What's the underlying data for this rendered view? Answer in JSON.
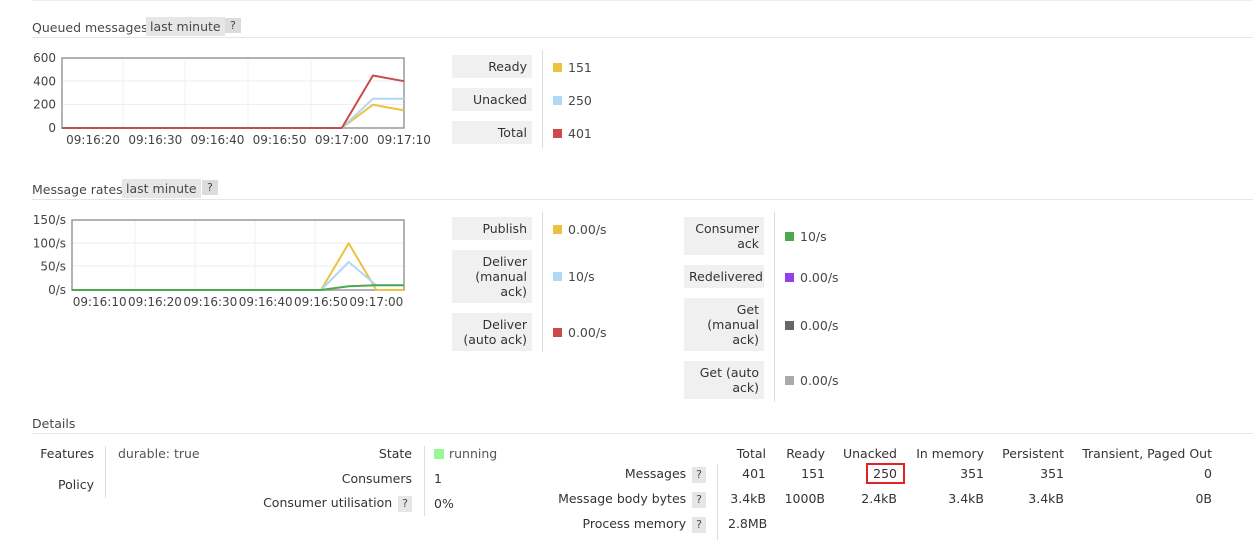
{
  "queued": {
    "title": "Queued messages",
    "range": "last minute",
    "help": "?",
    "yticks": [
      "600",
      "400",
      "200",
      "0"
    ],
    "xticks": [
      "09:16:20",
      "09:16:30",
      "09:16:40",
      "09:16:50",
      "09:17:00",
      "09:17:10"
    ],
    "legend": [
      {
        "label": "Ready",
        "value": "151",
        "color": "#edc240"
      },
      {
        "label": "Unacked",
        "value": "250",
        "color": "#afd8f8"
      },
      {
        "label": "Total",
        "value": "401",
        "color": "#cb4b4b"
      }
    ]
  },
  "rates": {
    "title": "Message rates",
    "range": "last minute",
    "help": "?",
    "yticks": [
      "150/s",
      "100/s",
      "50/s",
      "0/s"
    ],
    "xticks": [
      "09:16:10",
      "09:16:20",
      "09:16:30",
      "09:16:40",
      "09:16:50",
      "09:17:00"
    ],
    "legend_left": [
      {
        "label": "Publish",
        "value": "0.00/s",
        "color": "#edc240"
      },
      {
        "label": "Deliver (manual ack)",
        "value": "10/s",
        "color": "#afd8f8"
      },
      {
        "label": "Deliver (auto ack)",
        "value": "0.00/s",
        "color": "#cb4b4b"
      }
    ],
    "legend_right": [
      {
        "label": "Consumer ack",
        "value": "10/s",
        "color": "#4da74d"
      },
      {
        "label": "Redelivered",
        "value": "0.00/s",
        "color": "#9440ed"
      },
      {
        "label": "Get (manual ack)",
        "value": "0.00/s",
        "color": "#666666"
      },
      {
        "label": "Get (auto ack)",
        "value": "0.00/s",
        "color": "#aaaaaa"
      }
    ]
  },
  "chart_data": [
    {
      "type": "line",
      "x": [
        "09:16:15",
        "09:16:20",
        "09:16:30",
        "09:16:40",
        "09:16:50",
        "09:17:00",
        "09:17:05",
        "09:17:10"
      ],
      "series": [
        {
          "name": "Ready",
          "values": [
            0,
            0,
            0,
            0,
            0,
            0,
            200,
            151
          ]
        },
        {
          "name": "Unacked",
          "values": [
            0,
            0,
            0,
            0,
            0,
            0,
            250,
            250
          ]
        },
        {
          "name": "Total",
          "values": [
            0,
            0,
            0,
            0,
            0,
            0,
            450,
            401
          ]
        }
      ],
      "ylim": [
        0,
        600
      ]
    },
    {
      "type": "line",
      "x": [
        "09:16:05",
        "09:16:10",
        "09:16:20",
        "09:16:30",
        "09:16:40",
        "09:16:50",
        "09:16:55",
        "09:17:00",
        "09:17:05"
      ],
      "series": [
        {
          "name": "Publish",
          "values": [
            0,
            0,
            0,
            0,
            0,
            0,
            100,
            0,
            0
          ]
        },
        {
          "name": "Deliver (manual ack)",
          "values": [
            0,
            0,
            0,
            0,
            0,
            0,
            60,
            10,
            10
          ]
        },
        {
          "name": "Consumer ack",
          "values": [
            0,
            0,
            0,
            0,
            0,
            0,
            8,
            10,
            10
          ]
        }
      ],
      "ylim": [
        0,
        150
      ]
    }
  ],
  "details": {
    "title": "Details",
    "features_label": "Features",
    "features_value": "durable: true",
    "policy_label": "Policy",
    "state_label": "State",
    "state_value": "running",
    "consumers_label": "Consumers",
    "consumers_value": "1",
    "utilisation_label": "Consumer utilisation",
    "utilisation_value": "0%",
    "help": "?",
    "columns": [
      "Total",
      "Ready",
      "Unacked",
      "In memory",
      "Persistent",
      "Transient, Paged Out"
    ],
    "rows": [
      {
        "label": "Messages",
        "values": [
          "401",
          "151",
          "250",
          "351",
          "351",
          "0"
        ]
      },
      {
        "label": "Message body bytes",
        "values": [
          "3.4kB",
          "1000B",
          "2.4kB",
          "3.4kB",
          "3.4kB",
          "0B"
        ]
      },
      {
        "label": "Process memory",
        "values": [
          "2.8MB"
        ]
      }
    ]
  }
}
